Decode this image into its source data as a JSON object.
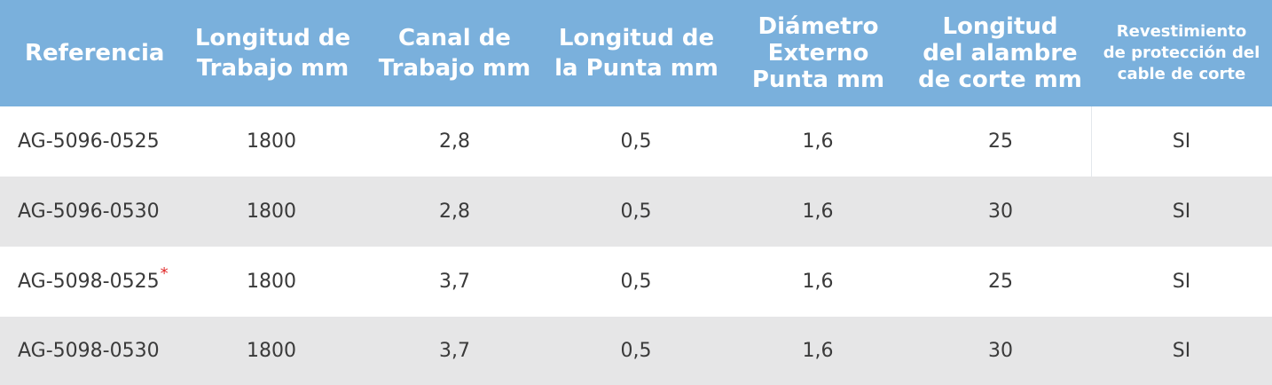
{
  "table": {
    "columns": [
      "Referencia",
      "Longitud de\nTrabajo mm",
      "Canal de\nTrabajo mm",
      "Longitud de\nla Punta mm",
      "Diámetro\nExterno\nPunta mm",
      "Longitud\ndel alambre\nde corte mm",
      "Revestimiento\nde protección del\ncable de corte"
    ],
    "rows": [
      {
        "ref": "AG-5096-0525",
        "mark": "",
        "cells": [
          "1800",
          "2,8",
          "0,5",
          "1,6",
          "25",
          "SI"
        ]
      },
      {
        "ref": "AG-5096-0530",
        "mark": "",
        "cells": [
          "1800",
          "2,8",
          "0,5",
          "1,6",
          "30",
          "SI"
        ]
      },
      {
        "ref": "AG-5098-0525",
        "mark": "*",
        "cells": [
          "1800",
          "3,7",
          "0,5",
          "1,6",
          "25",
          "SI"
        ]
      },
      {
        "ref": "AG-5098-0530",
        "mark": "",
        "cells": [
          "1800",
          "3,7",
          "0,5",
          "1,6",
          "30",
          "SI"
        ]
      }
    ],
    "colors": {
      "header_bg": "#7ab0dc",
      "header_text": "#ffffff",
      "row_odd": "#ffffff",
      "row_even": "#e6e6e7",
      "text": "#3a3a3a",
      "mark": "#e02a2a"
    }
  }
}
